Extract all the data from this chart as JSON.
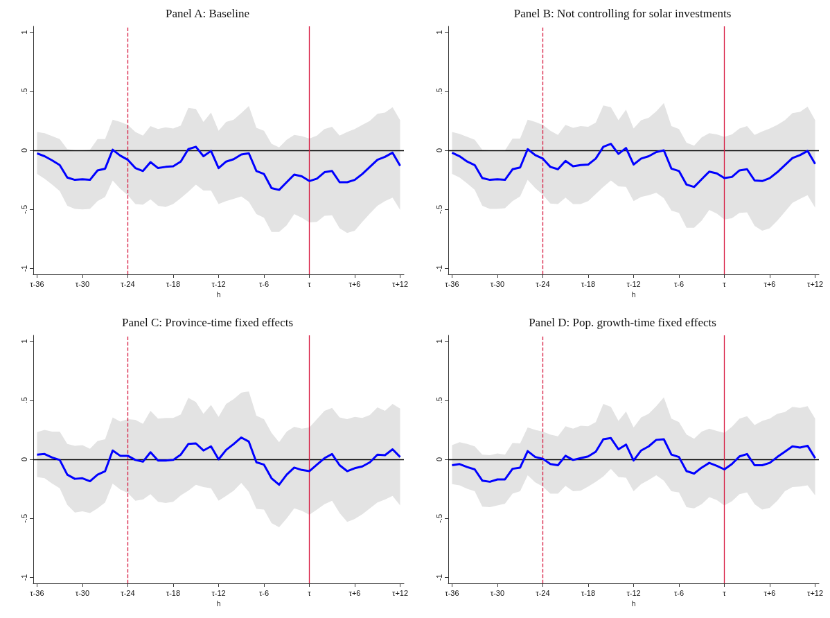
{
  "chart_data": [
    {
      "type": "line",
      "title": "Panel A: Baseline",
      "xlabel": "h",
      "categories": [
        "τ-36",
        null,
        null,
        null,
        null,
        null,
        "τ-30",
        null,
        null,
        null,
        null,
        null,
        "τ-24",
        null,
        null,
        null,
        null,
        null,
        "τ-18",
        null,
        null,
        null,
        null,
        null,
        "τ-12",
        null,
        null,
        null,
        null,
        null,
        "τ-6",
        null,
        null,
        null,
        null,
        null,
        "τ",
        null,
        null,
        null,
        null,
        null,
        "τ+6",
        null,
        null,
        null,
        null,
        null,
        "τ+12"
      ],
      "series": [
        {
          "color": "#0000ff",
          "values": [
            -0.026,
            -0.05,
            -0.085,
            -0.125,
            -0.23,
            -0.25,
            -0.245,
            -0.25,
            -0.17,
            -0.155,
            0.005,
            -0.045,
            -0.08,
            -0.15,
            -0.175,
            -0.1,
            -0.15,
            -0.14,
            -0.135,
            -0.095,
            0.01,
            0.03,
            -0.05,
            -0.005,
            -0.15,
            -0.095,
            -0.075,
            -0.035,
            -0.025,
            -0.175,
            -0.2,
            -0.32,
            -0.335,
            -0.27,
            -0.205,
            -0.22,
            -0.26,
            -0.24,
            -0.185,
            -0.175,
            -0.27,
            -0.27,
            -0.25,
            -0.2,
            -0.14,
            -0.08,
            -0.055,
            -0.02,
            -0.13
          ],
          "lower": [
            -0.2,
            -0.24,
            -0.29,
            -0.345,
            -0.47,
            -0.495,
            -0.5,
            -0.495,
            -0.43,
            -0.395,
            -0.255,
            -0.325,
            -0.38,
            -0.455,
            -0.46,
            -0.415,
            -0.47,
            -0.48,
            -0.455,
            -0.405,
            -0.35,
            -0.29,
            -0.34,
            -0.34,
            -0.455,
            -0.43,
            -0.41,
            -0.39,
            -0.435,
            -0.54,
            -0.57,
            -0.69,
            -0.69,
            -0.635,
            -0.54,
            -0.57,
            -0.61,
            -0.605,
            -0.555,
            -0.55,
            -0.66,
            -0.7,
            -0.68,
            -0.605,
            -0.535,
            -0.47,
            -0.43,
            -0.4,
            -0.505
          ],
          "upper": [
            0.155,
            0.145,
            0.12,
            0.095,
            0.01,
            0,
            0,
            0.005,
            0.095,
            0.095,
            0.26,
            0.24,
            0.215,
            0.155,
            0.125,
            0.205,
            0.18,
            0.195,
            0.185,
            0.21,
            0.36,
            0.35,
            0.24,
            0.32,
            0.165,
            0.24,
            0.26,
            0.315,
            0.375,
            0.19,
            0.165,
            0.055,
            0.025,
            0.09,
            0.13,
            0.12,
            0.1,
            0.125,
            0.18,
            0.2,
            0.125,
            0.155,
            0.18,
            0.215,
            0.25,
            0.31,
            0.32,
            0.365,
            0.255
          ]
        }
      ],
      "ylim": [
        -1.05,
        1.05
      ],
      "yticks": [
        {
          "value": -1,
          "label": "-1"
        },
        {
          "value": -0.5,
          "label": "-.5"
        },
        {
          "value": 0,
          "label": "0"
        },
        {
          "value": 0.5,
          "label": ".5"
        },
        {
          "value": 1,
          "label": "1"
        }
      ],
      "ref_lines": [
        {
          "axis": "y",
          "value": 0,
          "color": "#000000",
          "line_style": "solid"
        },
        {
          "axis": "x",
          "value": "τ-24",
          "color": "#d7193f",
          "line_style": "dashed"
        },
        {
          "axis": "x",
          "value": "τ",
          "color": "#d7193f",
          "line_style": "solid"
        }
      ]
    },
    {
      "type": "line",
      "title": "Panel B: Not controlling for solar investments",
      "xlabel": "h",
      "categories": [
        "τ-36",
        null,
        null,
        null,
        null,
        null,
        "τ-30",
        null,
        null,
        null,
        null,
        null,
        "τ-24",
        null,
        null,
        null,
        null,
        null,
        "τ-18",
        null,
        null,
        null,
        null,
        null,
        "τ-12",
        null,
        null,
        null,
        null,
        null,
        "τ-6",
        null,
        null,
        null,
        null,
        null,
        "τ",
        null,
        null,
        null,
        null,
        null,
        "τ+6",
        null,
        null,
        null,
        null,
        null,
        "τ+12"
      ],
      "series": [
        {
          "color": "#0000ff",
          "values": [
            -0.02,
            -0.05,
            -0.095,
            -0.125,
            -0.235,
            -0.25,
            -0.245,
            -0.25,
            -0.16,
            -0.145,
            0.01,
            -0.04,
            -0.07,
            -0.14,
            -0.16,
            -0.09,
            -0.135,
            -0.125,
            -0.12,
            -0.07,
            0.03,
            0.055,
            -0.03,
            0.02,
            -0.12,
            -0.07,
            -0.05,
            -0.015,
            0,
            -0.155,
            -0.175,
            -0.29,
            -0.31,
            -0.245,
            -0.18,
            -0.195,
            -0.235,
            -0.225,
            -0.17,
            -0.16,
            -0.255,
            -0.26,
            -0.235,
            -0.185,
            -0.125,
            -0.065,
            -0.04,
            -0.005,
            -0.115
          ],
          "lower": [
            -0.2,
            -0.23,
            -0.28,
            -0.335,
            -0.47,
            -0.495,
            -0.495,
            -0.49,
            -0.43,
            -0.39,
            -0.25,
            -0.32,
            -0.375,
            -0.45,
            -0.455,
            -0.4,
            -0.455,
            -0.455,
            -0.43,
            -0.37,
            -0.31,
            -0.255,
            -0.305,
            -0.31,
            -0.43,
            -0.395,
            -0.38,
            -0.36,
            -0.405,
            -0.51,
            -0.53,
            -0.655,
            -0.655,
            -0.595,
            -0.505,
            -0.535,
            -0.585,
            -0.575,
            -0.53,
            -0.525,
            -0.64,
            -0.68,
            -0.66,
            -0.595,
            -0.52,
            -0.445,
            -0.41,
            -0.38,
            -0.485
          ],
          "upper": [
            0.155,
            0.14,
            0.115,
            0.09,
            0.005,
            0,
            0,
            0,
            0.1,
            0.1,
            0.26,
            0.24,
            0.215,
            0.165,
            0.13,
            0.215,
            0.19,
            0.205,
            0.2,
            0.235,
            0.38,
            0.365,
            0.255,
            0.345,
            0.185,
            0.255,
            0.275,
            0.33,
            0.4,
            0.205,
            0.18,
            0.065,
            0.04,
            0.11,
            0.145,
            0.135,
            0.115,
            0.135,
            0.185,
            0.205,
            0.13,
            0.16,
            0.185,
            0.215,
            0.255,
            0.315,
            0.325,
            0.37,
            0.255
          ]
        }
      ],
      "ylim": [
        -1.05,
        1.05
      ],
      "yticks": [
        {
          "value": -1,
          "label": "-1"
        },
        {
          "value": -0.5,
          "label": "-.5"
        },
        {
          "value": 0,
          "label": "0"
        },
        {
          "value": 0.5,
          "label": ".5"
        },
        {
          "value": 1,
          "label": "1"
        }
      ],
      "ref_lines": [
        {
          "axis": "y",
          "value": 0,
          "color": "#000000",
          "line_style": "solid"
        },
        {
          "axis": "x",
          "value": "τ-24",
          "color": "#d7193f",
          "line_style": "dashed"
        },
        {
          "axis": "x",
          "value": "τ",
          "color": "#d7193f",
          "line_style": "solid"
        }
      ]
    },
    {
      "type": "line",
      "title": "Panel C: Province-time fixed effects",
      "xlabel": "h",
      "categories": [
        "τ-36",
        null,
        null,
        null,
        null,
        null,
        "τ-30",
        null,
        null,
        null,
        null,
        null,
        "τ-24",
        null,
        null,
        null,
        null,
        null,
        "τ-18",
        null,
        null,
        null,
        null,
        null,
        "τ-12",
        null,
        null,
        null,
        null,
        null,
        "τ-6",
        null,
        null,
        null,
        null,
        null,
        "τ",
        null,
        null,
        null,
        null,
        null,
        "τ+6",
        null,
        null,
        null,
        null,
        null,
        "τ+12"
      ],
      "series": [
        {
          "color": "#0000ff",
          "values": [
            0.04,
            0.045,
            0.015,
            -0.005,
            -0.13,
            -0.165,
            -0.16,
            -0.185,
            -0.13,
            -0.1,
            0.075,
            0.03,
            0.03,
            -0.005,
            -0.02,
            0.06,
            -0.01,
            -0.01,
            -0.005,
            0.04,
            0.13,
            0.135,
            0.075,
            0.11,
            0,
            0.08,
            0.13,
            0.185,
            0.15,
            -0.025,
            -0.045,
            -0.16,
            -0.215,
            -0.13,
            -0.07,
            -0.09,
            -0.1,
            -0.045,
            0.01,
            0.045,
            -0.05,
            -0.1,
            -0.075,
            -0.06,
            -0.025,
            0.04,
            0.035,
            0.085,
            0.02
          ],
          "lower": [
            -0.15,
            -0.16,
            -0.205,
            -0.245,
            -0.385,
            -0.45,
            -0.44,
            -0.455,
            -0.415,
            -0.365,
            -0.205,
            -0.255,
            -0.285,
            -0.35,
            -0.34,
            -0.295,
            -0.36,
            -0.37,
            -0.36,
            -0.305,
            -0.265,
            -0.215,
            -0.235,
            -0.245,
            -0.35,
            -0.31,
            -0.265,
            -0.2,
            -0.275,
            -0.42,
            -0.425,
            -0.54,
            -0.575,
            -0.5,
            -0.415,
            -0.435,
            -0.47,
            -0.425,
            -0.38,
            -0.35,
            -0.455,
            -0.53,
            -0.505,
            -0.465,
            -0.415,
            -0.365,
            -0.34,
            -0.31,
            -0.39
          ],
          "upper": [
            0.23,
            0.25,
            0.235,
            0.235,
            0.13,
            0.115,
            0.12,
            0.09,
            0.155,
            0.17,
            0.355,
            0.32,
            0.34,
            0.335,
            0.3,
            0.41,
            0.345,
            0.35,
            0.35,
            0.38,
            0.52,
            0.485,
            0.385,
            0.46,
            0.36,
            0.47,
            0.51,
            0.565,
            0.575,
            0.37,
            0.34,
            0.225,
            0.145,
            0.235,
            0.275,
            0.26,
            0.27,
            0.34,
            0.41,
            0.435,
            0.355,
            0.34,
            0.36,
            0.35,
            0.375,
            0.44,
            0.41,
            0.47,
            0.43
          ]
        }
      ],
      "ylim": [
        -1.05,
        1.05
      ],
      "yticks": [
        {
          "value": -1,
          "label": "-1"
        },
        {
          "value": -0.5,
          "label": "-.5"
        },
        {
          "value": 0,
          "label": "0"
        },
        {
          "value": 0.5,
          "label": ".5"
        },
        {
          "value": 1,
          "label": "1"
        }
      ],
      "ref_lines": [
        {
          "axis": "y",
          "value": 0,
          "color": "#000000",
          "line_style": "solid"
        },
        {
          "axis": "x",
          "value": "τ-24",
          "color": "#d7193f",
          "line_style": "dashed"
        },
        {
          "axis": "x",
          "value": "τ",
          "color": "#d7193f",
          "line_style": "solid"
        }
      ]
    },
    {
      "type": "line",
      "title": "Panel D: Pop. growth-time fixed effects",
      "xlabel": "h",
      "categories": [
        "τ-36",
        null,
        null,
        null,
        null,
        null,
        "τ-30",
        null,
        null,
        null,
        null,
        null,
        "τ-24",
        null,
        null,
        null,
        null,
        null,
        "τ-18",
        null,
        null,
        null,
        null,
        null,
        "τ-12",
        null,
        null,
        null,
        null,
        null,
        "τ-6",
        null,
        null,
        null,
        null,
        null,
        "τ",
        null,
        null,
        null,
        null,
        null,
        "τ+6",
        null,
        null,
        null,
        null,
        null,
        "τ+12"
      ],
      "series": [
        {
          "color": "#0000ff",
          "values": [
            -0.05,
            -0.04,
            -0.065,
            -0.085,
            -0.18,
            -0.19,
            -0.17,
            -0.17,
            -0.08,
            -0.07,
            0.07,
            0.02,
            0.005,
            -0.04,
            -0.05,
            0.03,
            -0.005,
            0.01,
            0.025,
            0.065,
            0.17,
            0.18,
            0.085,
            0.125,
            -0.01,
            0.075,
            0.11,
            0.165,
            0.17,
            0.04,
            0.02,
            -0.1,
            -0.12,
            -0.07,
            -0.03,
            -0.055,
            -0.085,
            -0.04,
            0.025,
            0.045,
            -0.05,
            -0.05,
            -0.03,
            0.02,
            0.065,
            0.11,
            0.1,
            0.115,
            0.01
          ],
          "lower": [
            -0.21,
            -0.22,
            -0.25,
            -0.27,
            -0.4,
            -0.405,
            -0.39,
            -0.375,
            -0.29,
            -0.27,
            -0.135,
            -0.195,
            -0.23,
            -0.29,
            -0.29,
            -0.225,
            -0.27,
            -0.265,
            -0.23,
            -0.19,
            -0.145,
            -0.08,
            -0.15,
            -0.155,
            -0.27,
            -0.21,
            -0.175,
            -0.135,
            -0.18,
            -0.27,
            -0.28,
            -0.405,
            -0.415,
            -0.38,
            -0.32,
            -0.345,
            -0.39,
            -0.355,
            -0.295,
            -0.28,
            -0.38,
            -0.425,
            -0.41,
            -0.35,
            -0.27,
            -0.235,
            -0.23,
            -0.22,
            -0.305
          ],
          "upper": [
            0.12,
            0.145,
            0.13,
            0.11,
            0.04,
            0.035,
            0.05,
            0.04,
            0.14,
            0.135,
            0.27,
            0.25,
            0.235,
            0.21,
            0.195,
            0.28,
            0.26,
            0.285,
            0.28,
            0.315,
            0.47,
            0.445,
            0.325,
            0.405,
            0.27,
            0.355,
            0.385,
            0.45,
            0.525,
            0.345,
            0.315,
            0.21,
            0.175,
            0.235,
            0.26,
            0.24,
            0.225,
            0.275,
            0.345,
            0.365,
            0.29,
            0.325,
            0.345,
            0.385,
            0.4,
            0.445,
            0.435,
            0.45,
            0.345
          ]
        }
      ],
      "ylim": [
        -1.05,
        1.05
      ],
      "yticks": [
        {
          "value": -1,
          "label": "-1"
        },
        {
          "value": -0.5,
          "label": "-.5"
        },
        {
          "value": 0,
          "label": "0"
        },
        {
          "value": 0.5,
          "label": ".5"
        },
        {
          "value": 1,
          "label": "1"
        }
      ],
      "ref_lines": [
        {
          "axis": "y",
          "value": 0,
          "color": "#000000",
          "line_style": "solid"
        },
        {
          "axis": "x",
          "value": "τ-24",
          "color": "#d7193f",
          "line_style": "dashed"
        },
        {
          "axis": "x",
          "value": "τ",
          "color": "#d7193f",
          "line_style": "solid"
        }
      ]
    }
  ]
}
